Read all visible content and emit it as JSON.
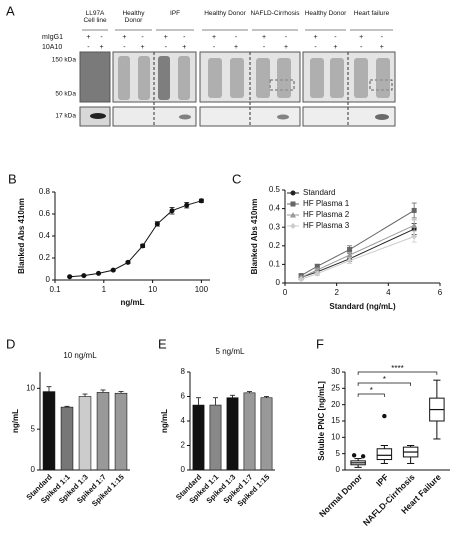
{
  "blot": {
    "label": "A",
    "groups": [
      "LL97A Cell line",
      "Healthy Donor",
      "IPF",
      "Healthy Donor",
      "NAFLD-Cirrhosis",
      "Healthy Donor",
      "Heart failure"
    ],
    "row_labels": [
      "mIgG1",
      "10A10"
    ],
    "signs": [
      [
        "+",
        "-",
        "+",
        "-",
        "+",
        "-",
        "+",
        "-",
        "+",
        "-",
        "+",
        "-",
        "+",
        "-"
      ],
      [
        "-",
        "+",
        "-",
        "+",
        "-",
        "+",
        "-",
        "+",
        "-",
        "+",
        "-",
        "+",
        "-",
        "+"
      ]
    ],
    "markers": [
      "150 kDa",
      "50 kDa",
      "17 kDa"
    ]
  },
  "chart_data": [
    {
      "type": "line",
      "label": "B",
      "xscale": "log",
      "x": [
        0.2,
        0.39,
        0.78,
        1.56,
        3.125,
        6.25,
        12.5,
        25,
        50,
        100
      ],
      "values": [
        0.03,
        0.04,
        0.06,
        0.09,
        0.16,
        0.31,
        0.51,
        0.63,
        0.68,
        0.72
      ],
      "errors": [
        0.005,
        0.005,
        0.005,
        0.008,
        0.01,
        0.015,
        0.02,
        0.03,
        0.025,
        0.015
      ],
      "color": "#111",
      "xlabel": "ng/mL",
      "ylabel": "Blanked Abs 410nm",
      "xlim": [
        0.1,
        150
      ],
      "xticks": [
        0.1,
        1,
        10,
        100
      ],
      "ylim": [
        0,
        0.8
      ],
      "yticks": [
        0.0,
        0.2,
        0.4,
        0.6,
        0.8
      ]
    },
    {
      "type": "line",
      "label": "C",
      "x": [
        0.625,
        1.25,
        2.5,
        5
      ],
      "series": [
        {
          "name": "Standard",
          "color": "#222",
          "marker": "circle",
          "values": [
            0.03,
            0.06,
            0.13,
            0.29
          ],
          "errors": [
            0.005,
            0.01,
            0.015,
            0.03
          ]
        },
        {
          "name": "HF Plasma 1",
          "color": "#666",
          "marker": "square",
          "values": [
            0.04,
            0.09,
            0.18,
            0.39
          ],
          "errors": [
            0.005,
            0.01,
            0.02,
            0.04
          ]
        },
        {
          "name": "HF Plasma 2",
          "color": "#999",
          "marker": "triangle",
          "values": [
            0.03,
            0.07,
            0.15,
            0.31
          ],
          "errors": [
            0.005,
            0.01,
            0.015,
            0.03
          ]
        },
        {
          "name": "HF Plasma 3",
          "color": "#ccc",
          "marker": "diamond",
          "values": [
            0.02,
            0.05,
            0.12,
            0.25
          ],
          "errors": [
            0.005,
            0.01,
            0.015,
            0.03
          ]
        }
      ],
      "xlabel": "Standard (ng/mL)",
      "ylabel": "Blanked Abs 410nm",
      "xlim": [
        0,
        6
      ],
      "xticks": [
        0,
        2,
        4,
        6
      ],
      "ylim": [
        0,
        0.5
      ],
      "yticks": [
        0.0,
        0.1,
        0.2,
        0.3,
        0.4,
        0.5
      ]
    },
    {
      "type": "bar",
      "label": "D",
      "title": "10 ng/mL",
      "ylabel": "ng/mL",
      "categories": [
        "Standard",
        "Spiked 1:1",
        "Spiked 1:3",
        "Spiked 1:7",
        "Spiked 1:15"
      ],
      "values": [
        9.6,
        7.7,
        9.0,
        9.5,
        9.4
      ],
      "errors": [
        0.6,
        0.1,
        0.3,
        0.3,
        0.2
      ],
      "colors": [
        "#111",
        "#777",
        "#ccc",
        "#999",
        "#999"
      ],
      "ylim": [
        0,
        12
      ],
      "yticks": [
        0,
        5,
        10
      ]
    },
    {
      "type": "bar",
      "label": "E",
      "title": "5 ng/mL",
      "ylabel": "ng/mL",
      "categories": [
        "Standard",
        "Spiked 1:1",
        "Spiked 1:3",
        "Spiked 1:7",
        "Spiked 1:15"
      ],
      "values": [
        5.3,
        5.3,
        5.9,
        6.3,
        5.9
      ],
      "errors": [
        0.6,
        0.6,
        0.2,
        0.1,
        0.1
      ],
      "colors": [
        "#111",
        "#888",
        "#111",
        "#999",
        "#999"
      ],
      "ylim": [
        0,
        8
      ],
      "yticks": [
        0,
        2,
        4,
        6,
        8
      ]
    },
    {
      "type": "box",
      "label": "F",
      "ylabel": "Soluble PNC [ng/mL]",
      "categories": [
        "Normal Donor",
        "IPF",
        "NAFLD-Cirrhosis",
        "Heart Failure"
      ],
      "boxes": [
        {
          "min": 0.8,
          "q1": 1.6,
          "median": 2.2,
          "q3": 2.8,
          "max": 3.5,
          "outliers": [
            4.5,
            4.2
          ]
        },
        {
          "min": 2,
          "q1": 3.2,
          "median": 4.5,
          "q3": 6.5,
          "max": 7.5,
          "outliers": [
            16.5
          ]
        },
        {
          "min": 2,
          "q1": 4,
          "median": 5.5,
          "q3": 7,
          "max": 7.5,
          "outliers": []
        },
        {
          "min": 9.5,
          "q1": 15,
          "median": 18.5,
          "q3": 22,
          "max": 27.5,
          "outliers": []
        }
      ],
      "significance": [
        {
          "from": 0,
          "to": 1,
          "label": "*"
        },
        {
          "from": 0,
          "to": 2,
          "label": "*"
        },
        {
          "from": 0,
          "to": 3,
          "label": "****"
        }
      ],
      "ylim": [
        0,
        30
      ],
      "yticks": [
        0,
        5,
        10,
        15,
        20,
        25,
        30
      ]
    }
  ]
}
